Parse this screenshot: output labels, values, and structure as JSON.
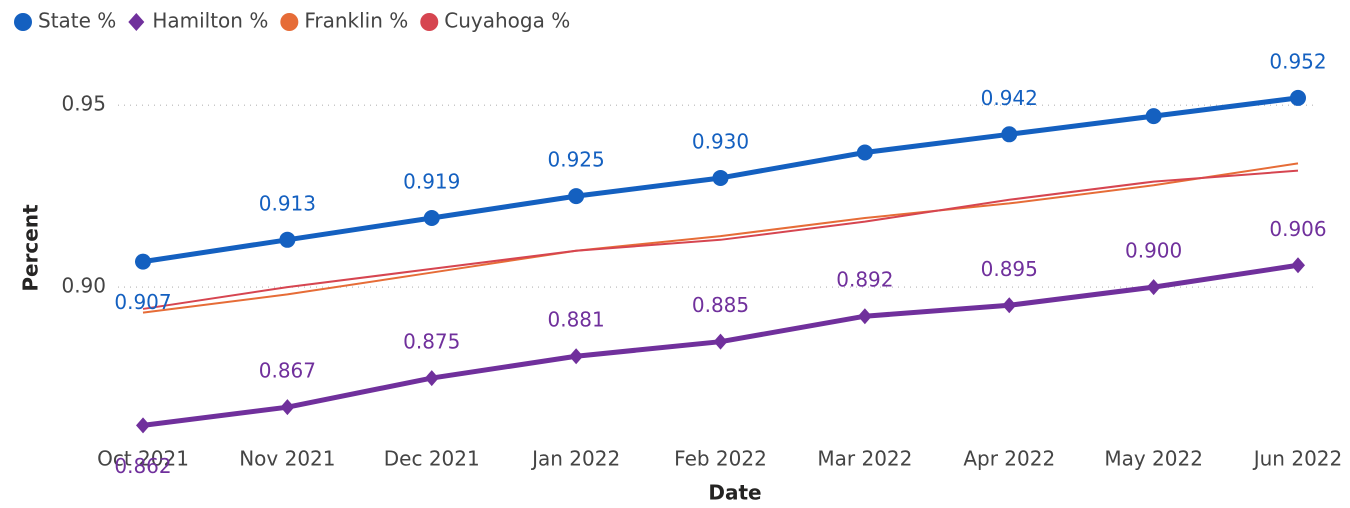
{
  "chart_data": {
    "type": "line",
    "x_label": "Date",
    "y_label": "Percent",
    "categories": [
      "Oct 2021",
      "Nov 2021",
      "Dec 2021",
      "Jan 2022",
      "Feb 2022",
      "Mar 2022",
      "Apr 2022",
      "May 2022",
      "Jun 2022"
    ],
    "series": [
      {
        "name": "State %",
        "color": "#1460c0",
        "marker": "circle",
        "values": [
          0.907,
          0.913,
          0.919,
          0.925,
          0.93,
          0.937,
          0.942,
          0.947,
          0.952
        ],
        "value_labels": [
          "0.907",
          "0.913",
          "0.919",
          "0.925",
          "0.930",
          null,
          "0.942",
          null,
          "0.952"
        ]
      },
      {
        "name": "Hamilton %",
        "color": "#70309c",
        "marker": "diamond",
        "values": [
          0.862,
          0.867,
          0.875,
          0.881,
          0.885,
          0.892,
          0.895,
          0.9,
          0.906
        ],
        "value_labels": [
          "0.862",
          "0.867",
          "0.875",
          "0.881",
          "0.885",
          "0.892",
          "0.895",
          "0.900",
          "0.906"
        ]
      },
      {
        "name": "Franklin %",
        "color": "#e66c37",
        "values": [
          0.893,
          0.898,
          0.904,
          0.91,
          0.914,
          0.919,
          0.923,
          0.928,
          0.934
        ]
      },
      {
        "name": "Cuyahoga %",
        "color": "#d64550",
        "values": [
          0.894,
          0.9,
          0.905,
          0.91,
          0.913,
          0.918,
          0.924,
          0.929,
          0.932
        ]
      }
    ],
    "ylim": [
      0.861,
      0.955
    ],
    "yticks": [
      {
        "value": 0.9,
        "label": "0.90"
      },
      0.95
    ],
    "grid": true
  }
}
